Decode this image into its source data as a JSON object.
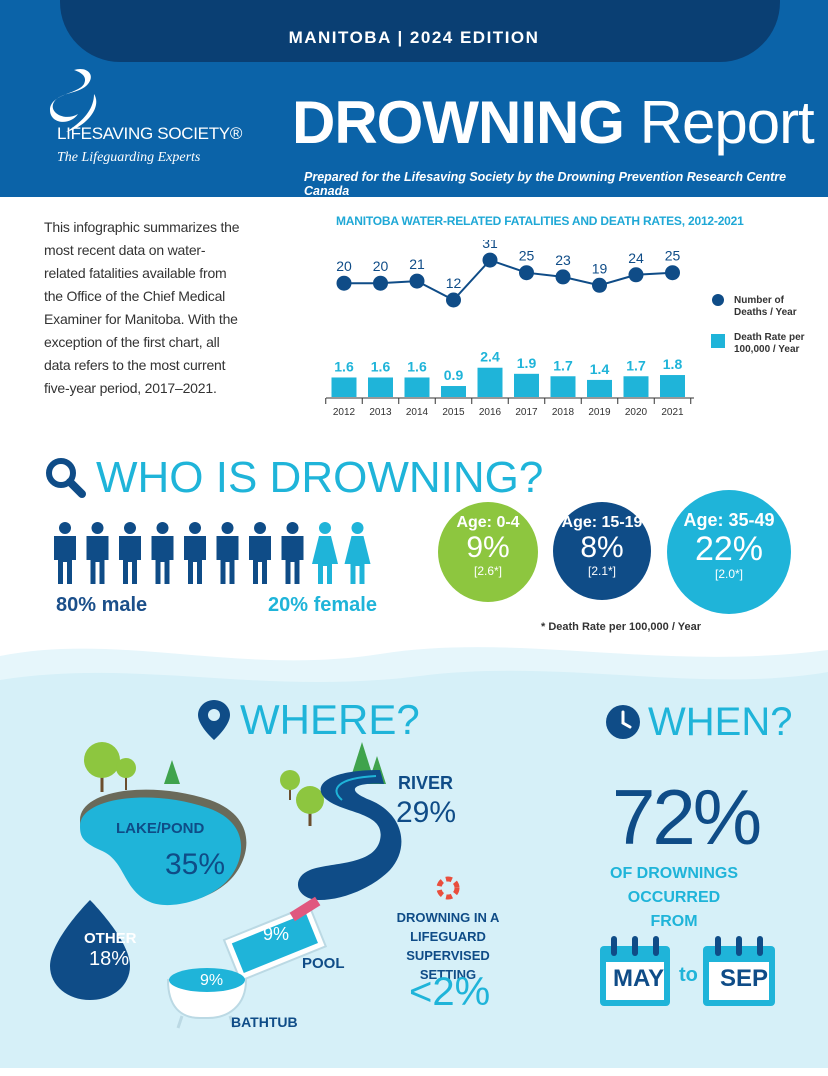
{
  "header": {
    "edition": "MANITOBA  |  2024 EDITION",
    "logo_name": "LIFESAVING SOCIETY®",
    "logo_tagline": "The Lifeguarding Experts",
    "title_bold": "DROWNING",
    "title_light": "Report",
    "subtitle": "Prepared for the Lifesaving Society by the Drowning Prevention Research Centre Canada"
  },
  "intro": "This infographic summarizes the most recent data on water-related fatalities available from the Office of the Chief Medical Examiner for Manitoba. With the exception of the first chart, all data refers to the most current five-year period, 2017–2021.",
  "chart_title": "MANITOBA WATER-RELATED FATALITIES AND DEATH RATES, 2012-2021",
  "chart_data": {
    "type": "bar",
    "categories": [
      "2012",
      "2013",
      "2014",
      "2015",
      "2016",
      "2017",
      "2018",
      "2019",
      "2020",
      "2021"
    ],
    "series": [
      {
        "name": "Number of Deaths / Year",
        "type": "line",
        "values": [
          20,
          20,
          21,
          12,
          31,
          25,
          23,
          19,
          24,
          25
        ]
      },
      {
        "name": "Death Rate per 100,000 / Year",
        "type": "bar",
        "values": [
          "1.6",
          "1.6",
          "1.6",
          "0.9",
          "2.4",
          "1.9",
          "1.7",
          "1.4",
          "1.7",
          "1.8"
        ]
      }
    ],
    "legend": [
      "Number of Deaths / Year",
      "Death Rate per 100,000 / Year"
    ],
    "legend_position": "right"
  },
  "who": {
    "title": "WHO IS DROWNING?",
    "male_label": "80% male",
    "female_label": "20% female",
    "male_count": 8,
    "female_count": 2,
    "ages": [
      {
        "age": "Age: 0-4",
        "pct": "9%",
        "rate": "[2.6*]"
      },
      {
        "age": "Age: 15-19",
        "pct": "8%",
        "rate": "[2.1*]"
      },
      {
        "age": "Age: 35-49",
        "pct": "22%",
        "rate": "[2.0*]"
      }
    ],
    "footnote": "* Death Rate per 100,000 / Year"
  },
  "where": {
    "title": "WHERE?",
    "lake_label": "LAKE/POND",
    "lake_pct": "35%",
    "river_label": "RIVER",
    "river_pct": "29%",
    "other_label": "OTHER",
    "other_pct": "18%",
    "pool_label": "POOL",
    "pool_pct": "9%",
    "bathtub_label": "BATHTUB",
    "bathtub_pct": "9%",
    "lifeguard_text": "DROWNING IN A LIFEGUARD SUPERVISED SETTING",
    "lifeguard_pct": "<2%"
  },
  "when": {
    "title": "WHEN?",
    "big": "72%",
    "sub": "OF DROWNINGS OCCURRED FROM",
    "from": "MAY",
    "to": "to",
    "until": "SEP"
  },
  "colors": {
    "blue_dark": "#0f4c87",
    "blue_header": "#0b63a8",
    "cyan": "#1fb4d9",
    "green": "#8dc63f",
    "water_bg": "#d6f0f8"
  }
}
